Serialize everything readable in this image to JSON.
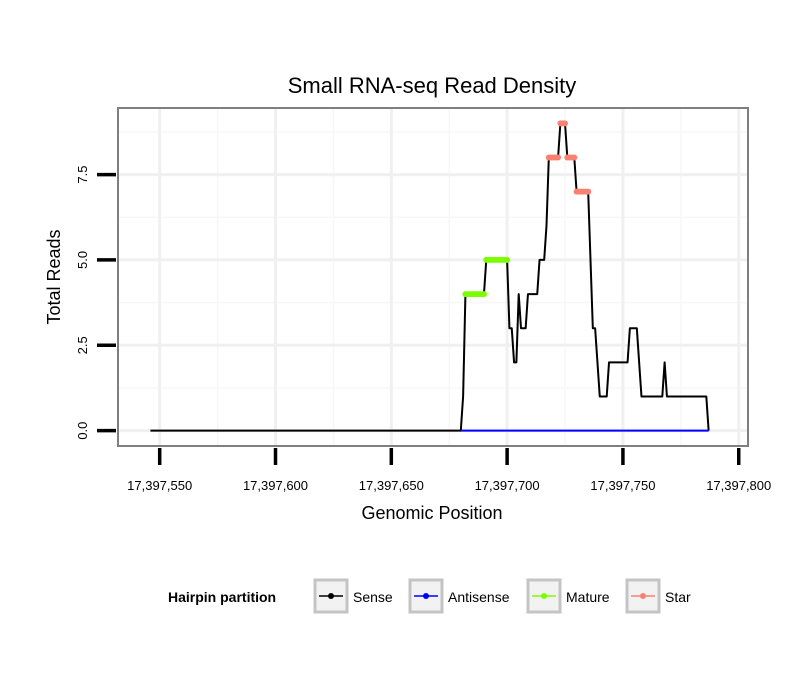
{
  "chart_data": {
    "type": "line",
    "title": "Small RNA-seq Read Density",
    "xlabel": "Genomic Position",
    "ylabel": "Total Reads",
    "xlim": [
      17397532,
      17397804
    ],
    "ylim": [
      -0.45,
      9.45
    ],
    "x_ticks": [
      17397550,
      17397600,
      17397650,
      17397700,
      17397750,
      17397800
    ],
    "x_tick_labels": [
      "17,397,550",
      "17,397,600",
      "17,397,650",
      "17,397,700",
      "17,397,750",
      "17,397,800"
    ],
    "y_ticks": [
      0,
      2.5,
      5,
      7.5
    ],
    "y_tick_labels": [
      "0.0",
      "2.5",
      "5.0",
      "7.5"
    ],
    "grid": true,
    "legend": {
      "title": "Hairpin partition",
      "position": "bottom",
      "entries": [
        {
          "label": "Sense",
          "color": "#000000"
        },
        {
          "label": "Antisense",
          "color": "#0000ff"
        },
        {
          "label": "Mature",
          "color": "#7cfc00"
        },
        {
          "label": "Star",
          "color": "#fa8072"
        }
      ]
    },
    "series": [
      {
        "name": "Sense",
        "color": "#000000",
        "style": "line",
        "points": [
          [
            17397546,
            0
          ],
          [
            17397680,
            0
          ],
          [
            17397681,
            1
          ],
          [
            17397682,
            4
          ],
          [
            17397690,
            4
          ],
          [
            17397691,
            5
          ],
          [
            17397700,
            5
          ],
          [
            17397701,
            3
          ],
          [
            17397702,
            3
          ],
          [
            17397703,
            2
          ],
          [
            17397704,
            2
          ],
          [
            17397705,
            4
          ],
          [
            17397706,
            3
          ],
          [
            17397708,
            3
          ],
          [
            17397709,
            4
          ],
          [
            17397713,
            4
          ],
          [
            17397714,
            5
          ],
          [
            17397716,
            5
          ],
          [
            17397717,
            6
          ],
          [
            17397718,
            8
          ],
          [
            17397722,
            8
          ],
          [
            17397723,
            9
          ],
          [
            17397725,
            9
          ],
          [
            17397726,
            8
          ],
          [
            17397729,
            8
          ],
          [
            17397730,
            7
          ],
          [
            17397735,
            7
          ],
          [
            17397736,
            5
          ],
          [
            17397737,
            3
          ],
          [
            17397738,
            3
          ],
          [
            17397739,
            2
          ],
          [
            17397740,
            1
          ],
          [
            17397743,
            1
          ],
          [
            17397744,
            2
          ],
          [
            17397752,
            2
          ],
          [
            17397753,
            3
          ],
          [
            17397756,
            3
          ],
          [
            17397757,
            2
          ],
          [
            17397758,
            1
          ],
          [
            17397767,
            1
          ],
          [
            17397768,
            2
          ],
          [
            17397769,
            1
          ],
          [
            17397786,
            1
          ],
          [
            17397787,
            0
          ]
        ]
      },
      {
        "name": "Antisense",
        "color": "#0000ff",
        "style": "line",
        "points": [
          [
            17397680,
            0
          ],
          [
            17397787,
            0
          ]
        ]
      },
      {
        "name": "Mature",
        "color": "#7cfc00",
        "style": "points",
        "points": [
          [
            17397682,
            4
          ],
          [
            17397683,
            4
          ],
          [
            17397684,
            4
          ],
          [
            17397685,
            4
          ],
          [
            17397686,
            4
          ],
          [
            17397687,
            4
          ],
          [
            17397688,
            4
          ],
          [
            17397689,
            4
          ],
          [
            17397690,
            4
          ],
          [
            17397691,
            5
          ],
          [
            17397692,
            5
          ],
          [
            17397693,
            5
          ],
          [
            17397694,
            5
          ],
          [
            17397695,
            5
          ],
          [
            17397696,
            5
          ],
          [
            17397697,
            5
          ],
          [
            17397698,
            5
          ],
          [
            17397699,
            5
          ],
          [
            17397700,
            5
          ]
        ]
      },
      {
        "name": "Star",
        "color": "#fa8072",
        "style": "points",
        "points": [
          [
            17397718,
            8
          ],
          [
            17397719,
            8
          ],
          [
            17397720,
            8
          ],
          [
            17397721,
            8
          ],
          [
            17397722,
            8
          ],
          [
            17397723,
            9
          ],
          [
            17397724,
            9
          ],
          [
            17397725,
            9
          ],
          [
            17397726,
            8
          ],
          [
            17397727,
            8
          ],
          [
            17397728,
            8
          ],
          [
            17397729,
            8
          ],
          [
            17397730,
            7
          ],
          [
            17397731,
            7
          ],
          [
            17397732,
            7
          ],
          [
            17397733,
            7
          ],
          [
            17397734,
            7
          ],
          [
            17397735,
            7
          ]
        ]
      }
    ]
  }
}
